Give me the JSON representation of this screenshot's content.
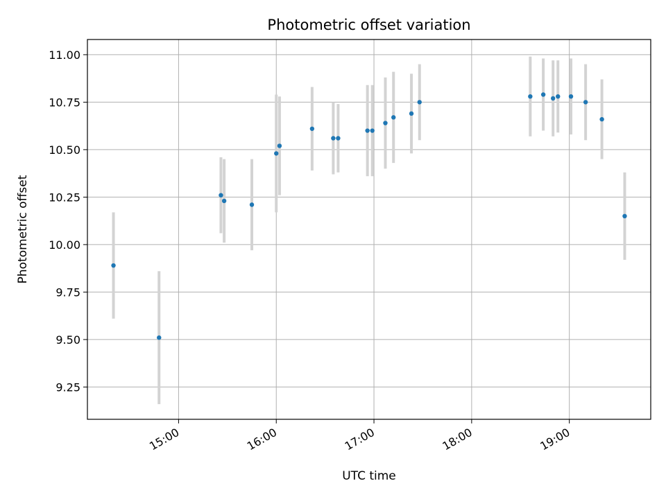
{
  "chart_data": {
    "type": "scatter",
    "title": "Photometric offset variation",
    "xlabel": "UTC time",
    "ylabel": "Photometric offset",
    "x_axis": {
      "type": "time",
      "range": [
        "14:04",
        "19:50"
      ],
      "ticks": [
        "15:00",
        "16:00",
        "17:00",
        "18:00",
        "19:00"
      ]
    },
    "y_axis": {
      "range": [
        9.08,
        11.08
      ],
      "ticks": [
        "9.25",
        "9.50",
        "9.75",
        "10.00",
        "10.25",
        "10.50",
        "10.75",
        "11.00"
      ]
    },
    "grid": true,
    "legend": "none",
    "colors": {
      "points": "#1f77b4",
      "errorbars": "#d3d3d3",
      "grid": "#b0b0b0"
    },
    "points": [
      {
        "x": "14:20",
        "y": 9.89,
        "err": 0.28
      },
      {
        "x": "14:48",
        "y": 9.51,
        "err": 0.35
      },
      {
        "x": "15:26",
        "y": 10.26,
        "err": 0.2
      },
      {
        "x": "15:28",
        "y": 10.23,
        "err": 0.22
      },
      {
        "x": "15:45",
        "y": 10.21,
        "err": 0.24
      },
      {
        "x": "16:00",
        "y": 10.48,
        "err": 0.31
      },
      {
        "x": "16:02",
        "y": 10.52,
        "err": 0.26
      },
      {
        "x": "16:22",
        "y": 10.61,
        "err": 0.22
      },
      {
        "x": "16:35",
        "y": 10.56,
        "err": 0.19
      },
      {
        "x": "16:38",
        "y": 10.56,
        "err": 0.18
      },
      {
        "x": "16:56",
        "y": 10.6,
        "err": 0.24
      },
      {
        "x": "16:59",
        "y": 10.6,
        "err": 0.24
      },
      {
        "x": "17:07",
        "y": 10.64,
        "err": 0.24
      },
      {
        "x": "17:12",
        "y": 10.67,
        "err": 0.24
      },
      {
        "x": "17:23",
        "y": 10.69,
        "err": 0.21
      },
      {
        "x": "17:28",
        "y": 10.75,
        "err": 0.2
      },
      {
        "x": "18:36",
        "y": 10.78,
        "err": 0.21
      },
      {
        "x": "18:44",
        "y": 10.79,
        "err": 0.19
      },
      {
        "x": "18:50",
        "y": 10.77,
        "err": 0.2
      },
      {
        "x": "18:53",
        "y": 10.78,
        "err": 0.19
      },
      {
        "x": "19:01",
        "y": 10.78,
        "err": 0.2
      },
      {
        "x": "19:10",
        "y": 10.75,
        "err": 0.2
      },
      {
        "x": "19:20",
        "y": 10.66,
        "err": 0.21
      },
      {
        "x": "19:34",
        "y": 10.15,
        "err": 0.23
      }
    ]
  }
}
